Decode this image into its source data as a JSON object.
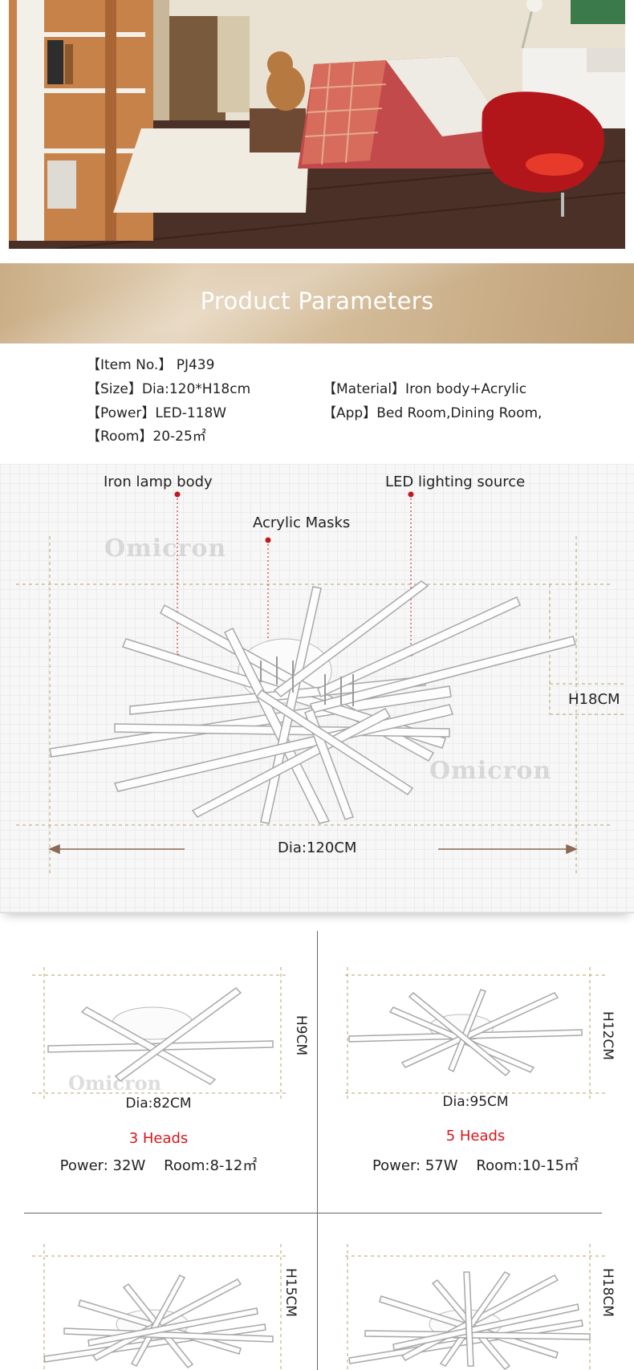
{
  "banner": {
    "title": "Product Parameters"
  },
  "specs": {
    "item_no": "【Item No.】 PJ439",
    "size": "【Size】Dia:120*H18cm",
    "material": "【Material】Iron body+Acrylic",
    "power": "【Power】LED-118W",
    "app": "【App】Bed Room,Dining Room,",
    "room": "【Room】20-25㎡"
  },
  "diagram": {
    "label_iron": "Iron lamp body",
    "label_led": "LED lighting source",
    "label_acrylic": "Acrylic Masks",
    "height": "H18CM",
    "diameter": "Dia:120CM",
    "watermark": "Omicron",
    "marker_color": "#c0181d",
    "arrow_color": "#8a6a55"
  },
  "variants": [
    {
      "heads": "3 Heads",
      "dia": "Dia:82CM",
      "height": "H9CM",
      "power": "Power: 32W",
      "room": "Room:8-12㎡"
    },
    {
      "heads": "5 Heads",
      "dia": "Dia:95CM",
      "height": "H12CM",
      "power": "Power: 57W",
      "room": "Room:10-15㎡"
    },
    {
      "height": "H15CM"
    },
    {
      "height": "H18CM"
    }
  ],
  "colors": {
    "heads_text": "#d8161b",
    "banner": "#c9ad85"
  }
}
